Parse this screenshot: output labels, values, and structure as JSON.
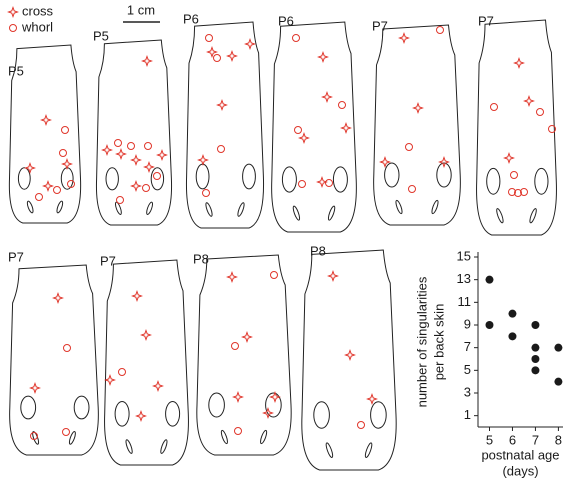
{
  "legend": {
    "cross": "cross",
    "whorl": "whorl"
  },
  "scale_bar": "1 cm",
  "panels": [
    {
      "label": "P5"
    },
    {
      "label": "P5"
    },
    {
      "label": "P6"
    },
    {
      "label": "P6"
    },
    {
      "label": "P7"
    },
    {
      "label": "P7"
    },
    {
      "label": "P7"
    },
    {
      "label": "P7"
    },
    {
      "label": "P8"
    },
    {
      "label": "P8"
    }
  ],
  "chart_data": {
    "type": "scatter",
    "ylabel": [
      "number of singularities",
      "per back skin"
    ],
    "xlabel": [
      "postnatal age",
      "(days)"
    ],
    "series": [
      {
        "color": "#1a1a1a",
        "x": [
          5,
          5,
          6,
          6,
          7,
          7,
          7,
          7,
          8,
          8
        ],
        "values": [
          13,
          9,
          10,
          8,
          9,
          7,
          6,
          5,
          7,
          4
        ]
      }
    ],
    "xlim": [
      4.5,
      8.2
    ],
    "xticks": [
      5,
      6,
      7,
      8
    ],
    "ylim": [
      0,
      15
    ],
    "yticks": [
      1,
      3,
      5,
      7,
      9,
      11,
      13,
      15
    ]
  }
}
